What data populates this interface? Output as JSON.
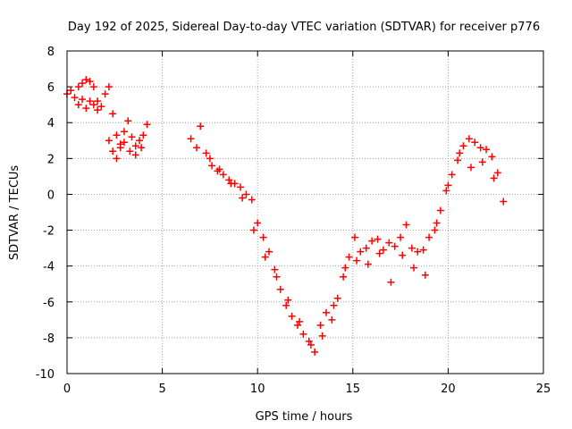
{
  "chart_data": {
    "type": "scatter",
    "title": "Day 192 of 2025, Sidereal Day-to-day VTEC variation (SDTVAR) for receiver p776",
    "xlabel": "GPS time / hours",
    "ylabel": "SDTVAR / TECUs",
    "xlim": [
      0,
      25
    ],
    "ylim": [
      -10,
      8
    ],
    "xticks": [
      0,
      5,
      10,
      15,
      20,
      25
    ],
    "yticks": [
      -10,
      -8,
      -6,
      -4,
      -2,
      0,
      2,
      4,
      6,
      8
    ],
    "grid": true,
    "marker": "+",
    "marker_color": "#ff0000",
    "series": [
      {
        "name": "SDTVAR",
        "x": [
          0.0,
          0.2,
          0.4,
          0.6,
          0.8,
          1.0,
          1.2,
          1.4,
          1.6,
          1.8,
          2.0,
          2.2,
          2.4,
          2.6,
          2.8,
          3.0,
          3.2,
          3.4,
          3.6,
          3.8,
          4.0,
          4.2,
          0.6,
          0.8,
          1.0,
          1.2,
          1.4,
          1.6,
          2.2,
          2.4,
          2.6,
          2.8,
          3.0,
          3.3,
          3.6,
          3.9,
          6.5,
          6.8,
          7.0,
          7.3,
          7.6,
          7.9,
          8.2,
          8.5,
          8.8,
          9.1,
          9.4,
          9.7,
          10.0,
          10.3,
          10.6,
          10.9,
          11.2,
          11.5,
          11.8,
          12.1,
          12.4,
          12.7,
          13.0,
          13.3,
          13.6,
          13.9,
          14.2,
          14.5,
          14.8,
          15.1,
          15.4,
          15.7,
          16.0,
          16.3,
          16.6,
          16.9,
          17.2,
          17.5,
          17.8,
          18.1,
          18.4,
          18.7,
          19.0,
          19.3,
          19.6,
          19.9,
          20.2,
          20.5,
          20.8,
          21.1,
          21.4,
          21.7,
          22.0,
          22.3,
          22.6,
          22.9,
          7.5,
          8.0,
          8.6,
          9.2,
          9.8,
          10.4,
          11.0,
          11.6,
          12.2,
          12.8,
          13.4,
          14.0,
          14.6,
          15.2,
          15.8,
          16.4,
          17.0,
          17.6,
          18.2,
          18.8,
          19.4,
          20.0,
          20.6,
          21.2,
          21.8,
          22.4
        ],
        "y": [
          5.6,
          5.8,
          5.4,
          6.0,
          6.2,
          6.4,
          6.3,
          6.0,
          5.2,
          4.9,
          5.6,
          6.0,
          4.5,
          3.3,
          2.8,
          3.5,
          4.1,
          3.2,
          2.7,
          3.0,
          3.3,
          3.9,
          5.0,
          5.3,
          4.8,
          5.2,
          5.0,
          4.7,
          3.0,
          2.4,
          2.0,
          2.6,
          2.9,
          2.4,
          2.2,
          2.6,
          3.1,
          2.6,
          3.8,
          2.3,
          1.6,
          1.3,
          1.1,
          0.8,
          0.6,
          0.4,
          0.0,
          -0.3,
          -1.6,
          -2.4,
          -3.2,
          -4.2,
          -5.3,
          -6.2,
          -6.8,
          -7.3,
          -7.8,
          -8.2,
          -8.8,
          -7.3,
          -6.6,
          -7.0,
          -5.8,
          -4.6,
          -3.5,
          -2.4,
          -3.2,
          -3.0,
          -2.6,
          -2.5,
          -3.1,
          -2.7,
          -2.9,
          -2.4,
          -1.7,
          -3.0,
          -3.2,
          -3.1,
          -2.4,
          -2.0,
          -0.9,
          0.2,
          1.1,
          1.9,
          2.7,
          3.1,
          2.9,
          2.6,
          2.5,
          2.1,
          1.2,
          -0.4,
          2.0,
          1.4,
          0.6,
          -0.2,
          -2.0,
          -3.5,
          -4.6,
          -5.9,
          -7.1,
          -8.4,
          -7.9,
          -6.2,
          -4.1,
          -3.7,
          -3.9,
          -3.3,
          -4.9,
          -3.4,
          -4.1,
          -4.5,
          -1.6,
          0.5,
          2.3,
          1.5,
          1.8,
          0.9
        ]
      }
    ]
  }
}
